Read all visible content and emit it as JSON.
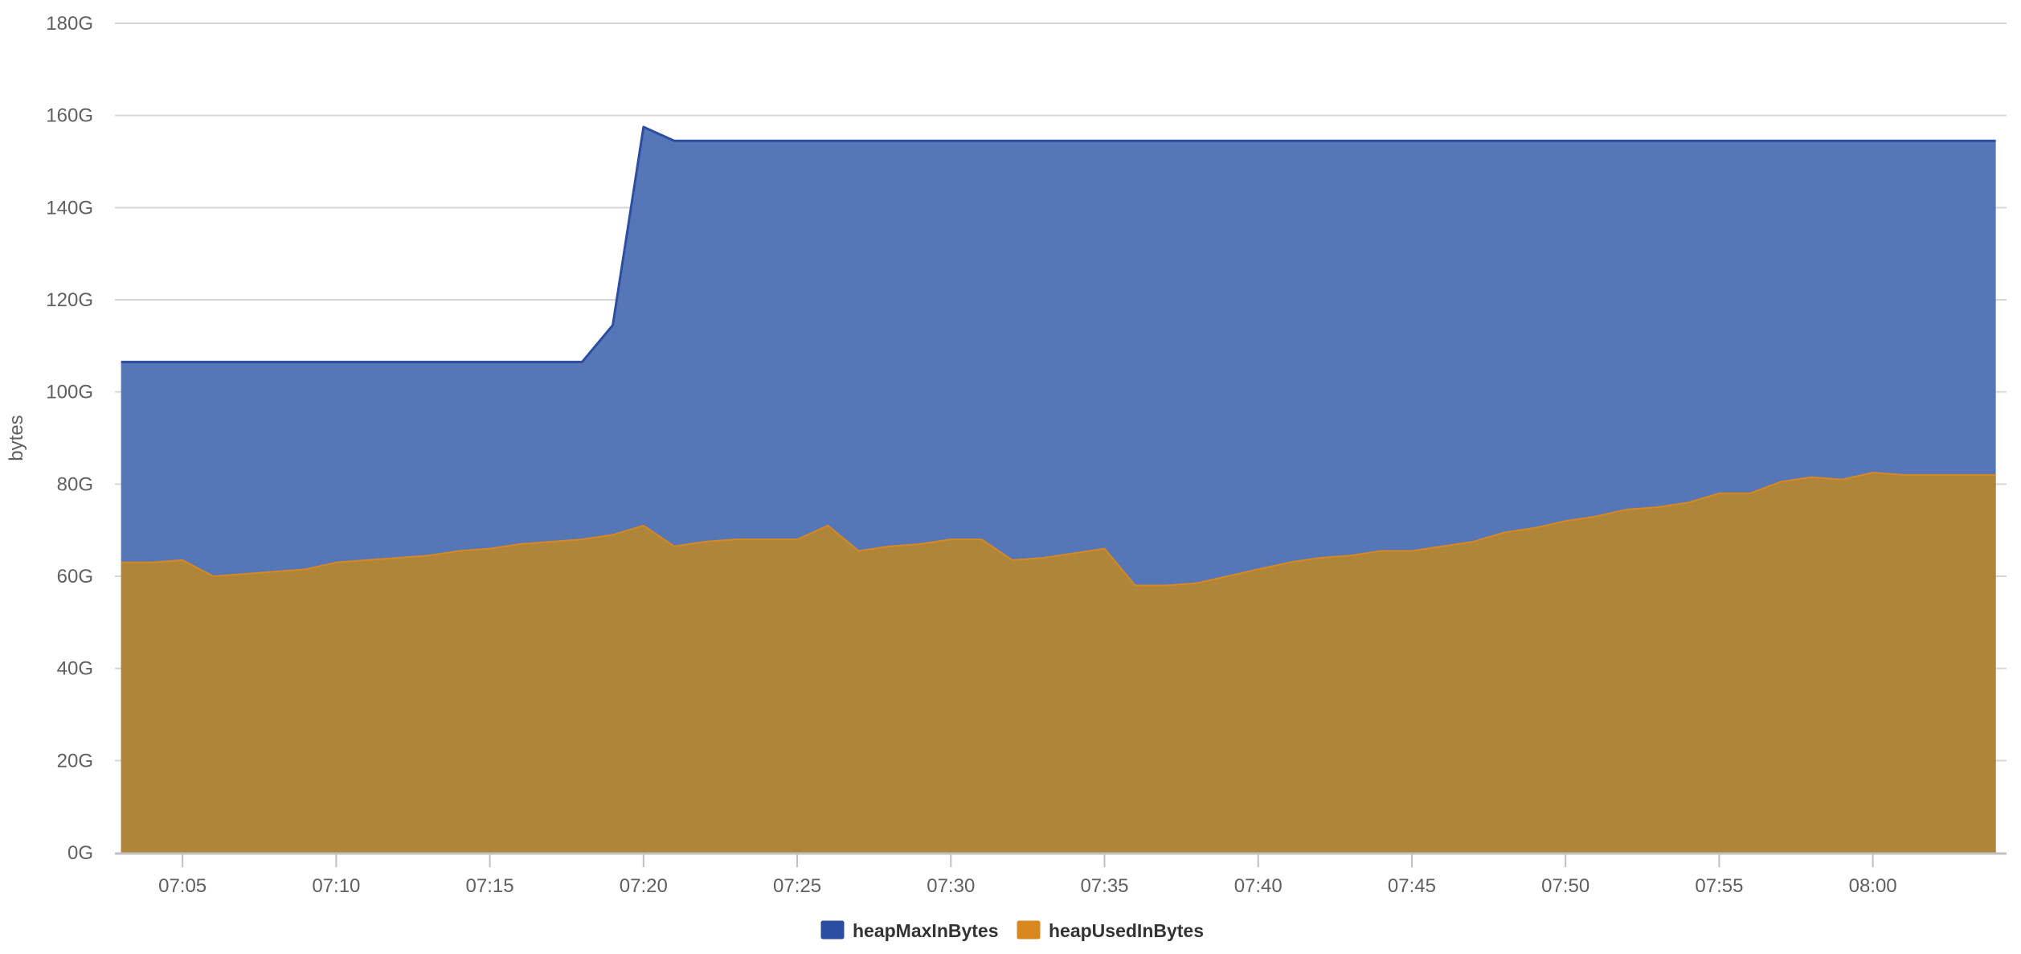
{
  "chart_data": {
    "type": "area",
    "title": "",
    "xlabel": "",
    "ylabel": "bytes",
    "grid": true,
    "legend_placement": "bottom-center",
    "x_start": "07:03",
    "x_step_minutes": 1,
    "xlim": [
      "07:03",
      "08:04"
    ],
    "ylim": [
      0,
      180
    ],
    "y_unit_suffix": "G",
    "x_ticks": [
      "07:05",
      "07:10",
      "07:15",
      "07:20",
      "07:25",
      "07:30",
      "07:35",
      "07:40",
      "07:45",
      "07:50",
      "07:55",
      "08:00"
    ],
    "y_ticks": [
      "0G",
      "20G",
      "40G",
      "60G",
      "80G",
      "100G",
      "120G",
      "140G",
      "160G",
      "180G"
    ],
    "x": [
      "07:03",
      "07:04",
      "07:05",
      "07:06",
      "07:07",
      "07:08",
      "07:09",
      "07:10",
      "07:11",
      "07:12",
      "07:13",
      "07:14",
      "07:15",
      "07:16",
      "07:17",
      "07:18",
      "07:19",
      "07:20",
      "07:21",
      "07:22",
      "07:23",
      "07:24",
      "07:25",
      "07:26",
      "07:27",
      "07:28",
      "07:29",
      "07:30",
      "07:31",
      "07:32",
      "07:33",
      "07:34",
      "07:35",
      "07:36",
      "07:37",
      "07:38",
      "07:39",
      "07:40",
      "07:41",
      "07:42",
      "07:43",
      "07:44",
      "07:45",
      "07:46",
      "07:47",
      "07:48",
      "07:49",
      "07:50",
      "07:51",
      "07:52",
      "07:53",
      "07:54",
      "07:55",
      "07:56",
      "07:57",
      "07:58",
      "07:59",
      "08:00",
      "08:01",
      "08:02",
      "08:03",
      "08:04"
    ],
    "series": [
      {
        "name": "heapMaxInBytes",
        "color": "#2b4ea3",
        "fill": "#5577b8",
        "values": [
          106.5,
          106.5,
          106.5,
          106.5,
          106.5,
          106.5,
          106.5,
          106.5,
          106.5,
          106.5,
          106.5,
          106.5,
          106.5,
          106.5,
          106.5,
          106.5,
          114.5,
          157.5,
          154.5,
          154.5,
          154.5,
          154.5,
          154.5,
          154.5,
          154.5,
          154.5,
          154.5,
          154.5,
          154.5,
          154.5,
          154.5,
          154.5,
          154.5,
          154.5,
          154.5,
          154.5,
          154.5,
          154.5,
          154.5,
          154.5,
          154.5,
          154.5,
          154.5,
          154.5,
          154.5,
          154.5,
          154.5,
          154.5,
          154.5,
          154.5,
          154.5,
          154.5,
          154.5,
          154.5,
          154.5,
          154.5,
          154.5,
          154.5,
          154.5,
          154.5,
          154.5,
          154.5
        ]
      },
      {
        "name": "heapUsedInBytes",
        "color": "#d9881f",
        "fill": "#ae8539",
        "values": [
          63,
          63,
          63.5,
          60,
          60.5,
          61,
          61.5,
          63,
          63.5,
          64,
          64.5,
          65.5,
          66,
          67,
          67.5,
          68,
          69,
          71,
          66.5,
          67.5,
          68,
          68,
          68,
          71,
          65.5,
          66.5,
          67,
          68,
          68,
          63.5,
          64,
          65,
          66,
          58,
          58,
          58.5,
          60,
          61.5,
          63,
          64,
          64.5,
          65.5,
          65.5,
          66.5,
          67.5,
          69.5,
          70.5,
          72,
          73,
          74.5,
          75,
          76,
          78,
          78,
          80.5,
          81.5,
          81,
          82.5,
          82,
          82,
          82,
          82
        ]
      }
    ]
  }
}
